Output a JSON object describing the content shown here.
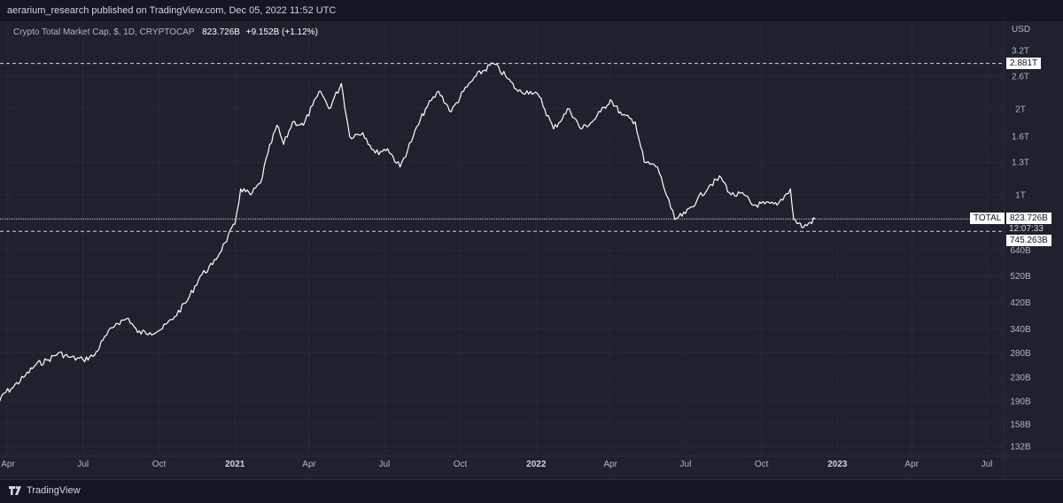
{
  "header": {
    "published": "aerarium_research published on TradingView.com, Dec 05, 2022 11:52 UTC"
  },
  "legend": {
    "title": "Crypto Total Market Cap, $, 1D, CRYPTOCAP",
    "value": "823.726B",
    "change": "+9.152B (+1.12%)"
  },
  "axis": {
    "currency": "USD"
  },
  "footer": {
    "brand": "TradingView"
  },
  "labels": {
    "ath": "2.881T",
    "symbol": "TOTAL",
    "last_value": "823.726B",
    "countdown": "12:07:33",
    "low_level": "745.263B"
  },
  "colors": {
    "background": "#1e222d",
    "line": "#ffffff",
    "grid": "#2a2e39",
    "text": "#b2b5be"
  },
  "chart_data": {
    "type": "line",
    "title": "Crypto Total Market Cap, $, 1D, CRYPTOCAP",
    "xlabel": "",
    "ylabel": "USD",
    "y_scale": "log",
    "ylim": [
      125,
      3400
    ],
    "grid": true,
    "x_ticks": [
      "Apr",
      "Jul",
      "Oct",
      "2021",
      "Apr",
      "Jul",
      "Oct",
      "2022",
      "Apr",
      "Jul",
      "Oct",
      "2023",
      "Apr",
      "Jul"
    ],
    "x_tick_dates": [
      "2020-04-01",
      "2020-07-01",
      "2020-10-01",
      "2021-01-01",
      "2021-04-01",
      "2021-07-01",
      "2021-10-01",
      "2022-01-01",
      "2022-04-01",
      "2022-07-01",
      "2022-10-01",
      "2023-01-01",
      "2023-04-01",
      "2023-07-01"
    ],
    "y_ticks": [
      {
        "label": "3.2T",
        "value": 3200
      },
      {
        "label": "2.6T",
        "value": 2600
      },
      {
        "label": "2T",
        "value": 2000
      },
      {
        "label": "1.6T",
        "value": 1600
      },
      {
        "label": "1.3T",
        "value": 1300
      },
      {
        "label": "1T",
        "value": 1000
      },
      {
        "label": "640B",
        "value": 640
      },
      {
        "label": "520B",
        "value": 520
      },
      {
        "label": "420B",
        "value": 420
      },
      {
        "label": "340B",
        "value": 340
      },
      {
        "label": "280B",
        "value": 280
      },
      {
        "label": "230B",
        "value": 230
      },
      {
        "label": "190B",
        "value": 190
      },
      {
        "label": "158B",
        "value": 158
      },
      {
        "label": "132B",
        "value": 132
      }
    ],
    "horizontal_lines": [
      {
        "value": 2881,
        "style": "dashed",
        "label": "2.881T"
      },
      {
        "value": 823.726,
        "style": "dotted",
        "label": "823.726B"
      },
      {
        "value": 745.263,
        "style": "dashed",
        "label": "745.263B"
      }
    ],
    "series": [
      {
        "unit": "B USD",
        "points": [
          [
            "2020-03-15",
            160
          ],
          [
            "2020-03-25",
            200
          ],
          [
            "2020-04-05",
            210
          ],
          [
            "2020-04-20",
            230
          ],
          [
            "2020-05-05",
            255
          ],
          [
            "2020-05-20",
            265
          ],
          [
            "2020-06-01",
            280
          ],
          [
            "2020-06-15",
            270
          ],
          [
            "2020-07-01",
            265
          ],
          [
            "2020-07-15",
            275
          ],
          [
            "2020-07-25",
            310
          ],
          [
            "2020-08-10",
            355
          ],
          [
            "2020-08-25",
            370
          ],
          [
            "2020-09-05",
            330
          ],
          [
            "2020-09-20",
            330
          ],
          [
            "2020-10-05",
            340
          ],
          [
            "2020-10-20",
            375
          ],
          [
            "2020-11-05",
            430
          ],
          [
            "2020-11-20",
            520
          ],
          [
            "2020-12-05",
            570
          ],
          [
            "2020-12-20",
            680
          ],
          [
            "2021-01-01",
            790
          ],
          [
            "2021-01-08",
            1050
          ],
          [
            "2021-01-20",
            1000
          ],
          [
            "2021-02-01",
            1100
          ],
          [
            "2021-02-10",
            1400
          ],
          [
            "2021-02-21",
            1750
          ],
          [
            "2021-03-01",
            1500
          ],
          [
            "2021-03-12",
            1800
          ],
          [
            "2021-03-25",
            1750
          ],
          [
            "2021-04-05",
            2050
          ],
          [
            "2021-04-15",
            2300
          ],
          [
            "2021-04-25",
            2000
          ],
          [
            "2021-05-10",
            2450
          ],
          [
            "2021-05-20",
            1600
          ],
          [
            "2021-06-05",
            1650
          ],
          [
            "2021-06-20",
            1400
          ],
          [
            "2021-07-05",
            1450
          ],
          [
            "2021-07-20",
            1250
          ],
          [
            "2021-08-05",
            1600
          ],
          [
            "2021-08-20",
            2000
          ],
          [
            "2021-09-05",
            2300
          ],
          [
            "2021-09-20",
            1950
          ],
          [
            "2021-10-05",
            2300
          ],
          [
            "2021-10-20",
            2600
          ],
          [
            "2021-11-10",
            2881
          ],
          [
            "2021-11-25",
            2600
          ],
          [
            "2021-12-10",
            2300
          ],
          [
            "2021-12-25",
            2300
          ],
          [
            "2022-01-05",
            2200
          ],
          [
            "2022-01-22",
            1700
          ],
          [
            "2022-02-10",
            2000
          ],
          [
            "2022-02-24",
            1700
          ],
          [
            "2022-03-10",
            1800
          ],
          [
            "2022-03-20",
            1950
          ],
          [
            "2022-04-01",
            2150
          ],
          [
            "2022-04-15",
            1900
          ],
          [
            "2022-05-01",
            1800
          ],
          [
            "2022-05-12",
            1300
          ],
          [
            "2022-05-28",
            1250
          ],
          [
            "2022-06-13",
            900
          ],
          [
            "2022-06-18",
            820
          ],
          [
            "2022-07-01",
            860
          ],
          [
            "2022-07-15",
            960
          ],
          [
            "2022-07-30",
            1080
          ],
          [
            "2022-08-13",
            1150
          ],
          [
            "2022-08-25",
            1000
          ],
          [
            "2022-09-10",
            1000
          ],
          [
            "2022-09-20",
            920
          ],
          [
            "2022-10-05",
            930
          ],
          [
            "2022-10-20",
            920
          ],
          [
            "2022-11-05",
            1050
          ],
          [
            "2022-11-09",
            820
          ],
          [
            "2022-11-21",
            770
          ],
          [
            "2022-12-05",
            823.726
          ]
        ]
      }
    ]
  }
}
